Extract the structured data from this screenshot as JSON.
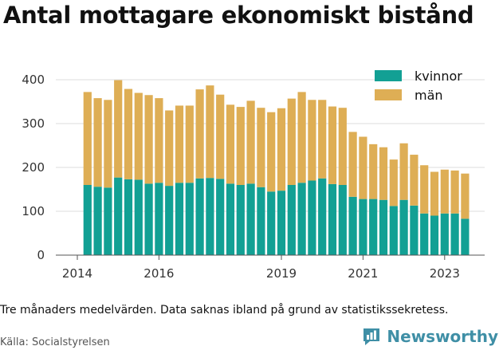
{
  "title": "Antal mottagare ekonomiskt bistånd",
  "note": "Tre månaders medelvärden. Data saknas ibland på grund av statistikssekretess.",
  "source": "Källa: Socialstyrelsen",
  "brand": {
    "name": "Newsworthy",
    "icon": "newsworthy-chart-icon",
    "color": "#3f8fa6"
  },
  "colors": {
    "kvinnor": "#12a094",
    "man": "#deae55",
    "grid": "#dddddd",
    "axis": "#555555"
  },
  "chart_data": {
    "type": "bar",
    "stacked": true,
    "title": "Antal mottagare ekonomiskt bistånd",
    "x_start": "2014-04",
    "x_step_months": 3,
    "x_tick_labels": [
      "2014",
      "2016",
      "2019",
      "2021",
      "2023"
    ],
    "x_tick_years": [
      2014,
      2016,
      2019,
      2021,
      2023
    ],
    "y_ticks": [
      0,
      100,
      200,
      300,
      400
    ],
    "ylim": [
      0,
      420
    ],
    "grid": true,
    "legend": "top-right",
    "series": [
      {
        "name": "kvinnor",
        "color": "#12a094",
        "values": [
          160,
          156,
          154,
          177,
          173,
          172,
          163,
          165,
          158,
          165,
          165,
          175,
          176,
          174,
          163,
          160,
          163,
          155,
          145,
          147,
          160,
          165,
          170,
          175,
          162,
          160,
          133,
          128,
          128,
          126,
          112,
          126,
          113,
          95,
          90,
          95,
          95,
          83
        ]
      },
      {
        "name": "män",
        "color": "#deae55",
        "values": [
          212,
          202,
          200,
          222,
          206,
          198,
          202,
          193,
          172,
          176,
          176,
          203,
          211,
          192,
          180,
          178,
          189,
          181,
          181,
          188,
          197,
          207,
          184,
          179,
          177,
          176,
          148,
          142,
          125,
          120,
          106,
          129,
          116,
          110,
          100,
          100,
          98,
          103
        ]
      }
    ]
  }
}
